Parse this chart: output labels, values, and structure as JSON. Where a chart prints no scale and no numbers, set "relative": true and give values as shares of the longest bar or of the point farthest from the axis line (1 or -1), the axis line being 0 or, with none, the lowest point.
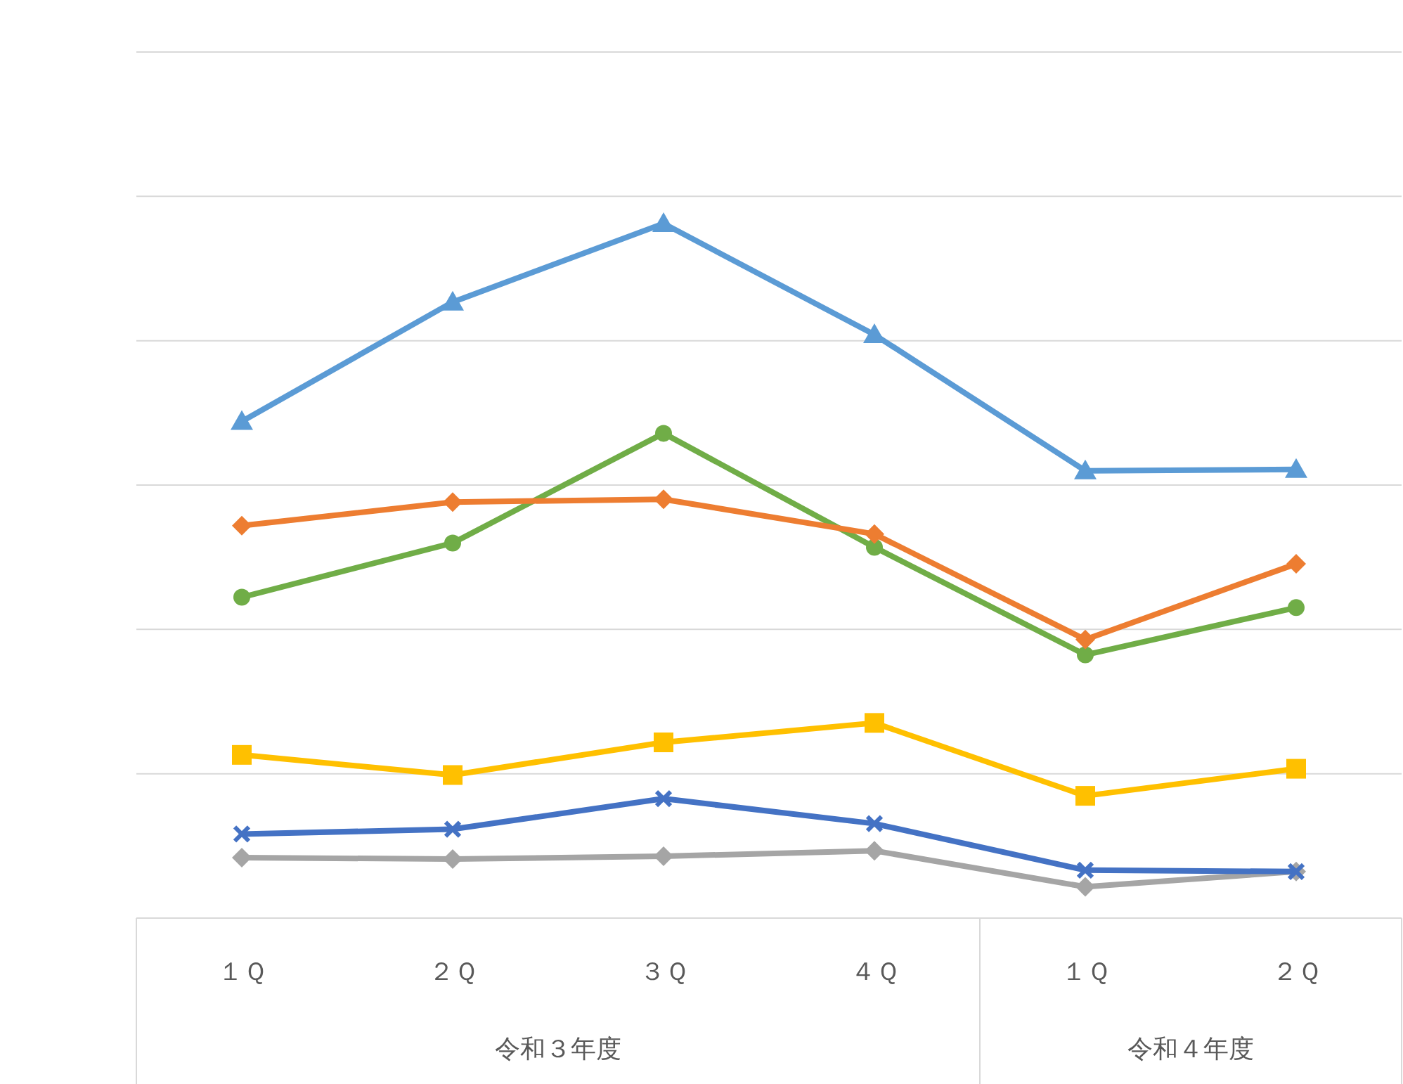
{
  "chart_data": {
    "type": "line",
    "relative": true,
    "grid": "y",
    "categories": [
      "１Ｑ",
      "２Ｑ",
      "３Ｑ",
      "４Ｑ",
      "１Ｑ",
      "２Ｑ"
    ],
    "annotations": [
      "令和３年度",
      "令和４年度"
    ],
    "series": [
      {
        "color": "#5b9bd5",
        "marker": "triangle",
        "values": [
          0.715,
          0.887,
          1.0,
          0.84,
          0.644,
          0.646
        ]
      },
      {
        "color": "#ed7d31",
        "marker": "diamond",
        "values": [
          0.565,
          0.599,
          0.603,
          0.553,
          0.401,
          0.51
        ]
      },
      {
        "color": "#70ad47",
        "marker": "circle",
        "values": [
          0.462,
          0.54,
          0.698,
          0.534,
          0.379,
          0.447
        ]
      },
      {
        "color": "#ffc000",
        "marker": "square",
        "values": [
          0.235,
          0.206,
          0.253,
          0.281,
          0.176,
          0.215
        ]
      },
      {
        "color": "#4472c4",
        "marker": "cross",
        "values": [
          0.121,
          0.128,
          0.172,
          0.136,
          0.069,
          0.067
        ]
      },
      {
        "color": "#a5a5a5",
        "marker": "diamond",
        "values": [
          0.087,
          0.085,
          0.089,
          0.097,
          0.045,
          0.067
        ]
      }
    ]
  }
}
